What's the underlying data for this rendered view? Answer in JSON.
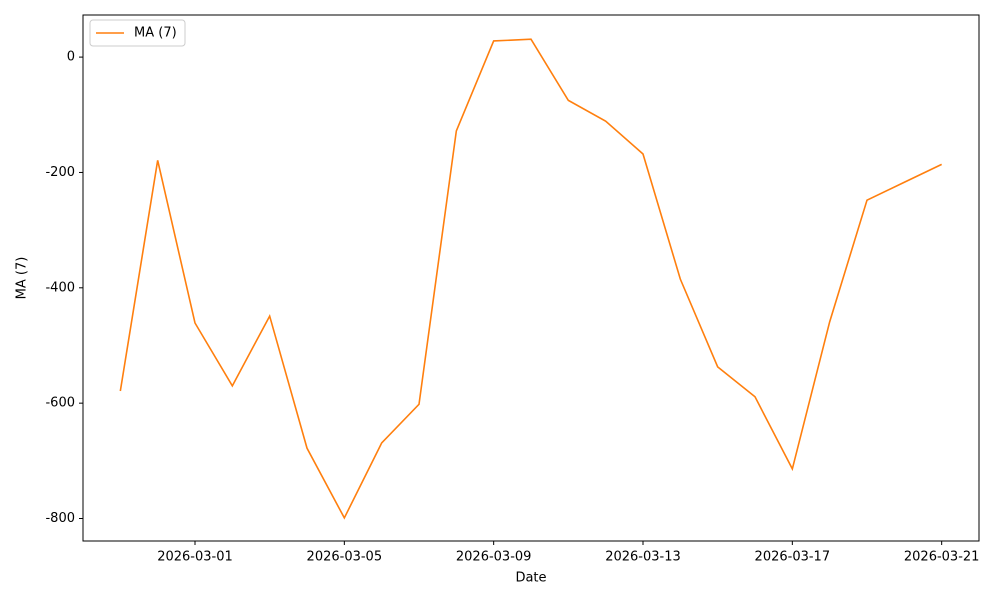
{
  "chart_data": {
    "type": "line",
    "x_label": "Date",
    "y_label": "MA (7)",
    "x": [
      "2026-02-27",
      "2026-02-28",
      "2026-03-01",
      "2026-03-02",
      "2026-03-03",
      "2026-03-04",
      "2026-03-05",
      "2026-03-06",
      "2026-03-07",
      "2026-03-08",
      "2026-03-09",
      "2026-03-10",
      "2026-03-11",
      "2026-03-12",
      "2026-03-13",
      "2026-03-14",
      "2026-03-15",
      "2026-03-16",
      "2026-03-17",
      "2026-03-18",
      "2026-03-19",
      "2026-03-20",
      "2026-03-21"
    ],
    "series": [
      {
        "name": "MA (7)",
        "color": "#ff7f0e",
        "values": [
          -579,
          -179,
          -461,
          -570,
          -449,
          -678,
          -799,
          -669,
          -602,
          -128,
          28,
          31,
          -75,
          -111,
          -168,
          -385,
          -537,
          -589,
          -714,
          -459,
          -248,
          -217,
          -186
        ]
      }
    ],
    "xlim": [
      "2026-02-26",
      "2026-03-22"
    ],
    "xticks": [
      "2026-03-01",
      "2026-03-05",
      "2026-03-09",
      "2026-03-13",
      "2026-03-17",
      "2026-03-21"
    ],
    "ylim": [
      -839,
      73
    ],
    "yticks": [
      -800,
      -600,
      -400,
      -200,
      0
    ],
    "legend": "upper left",
    "grid": false
  }
}
